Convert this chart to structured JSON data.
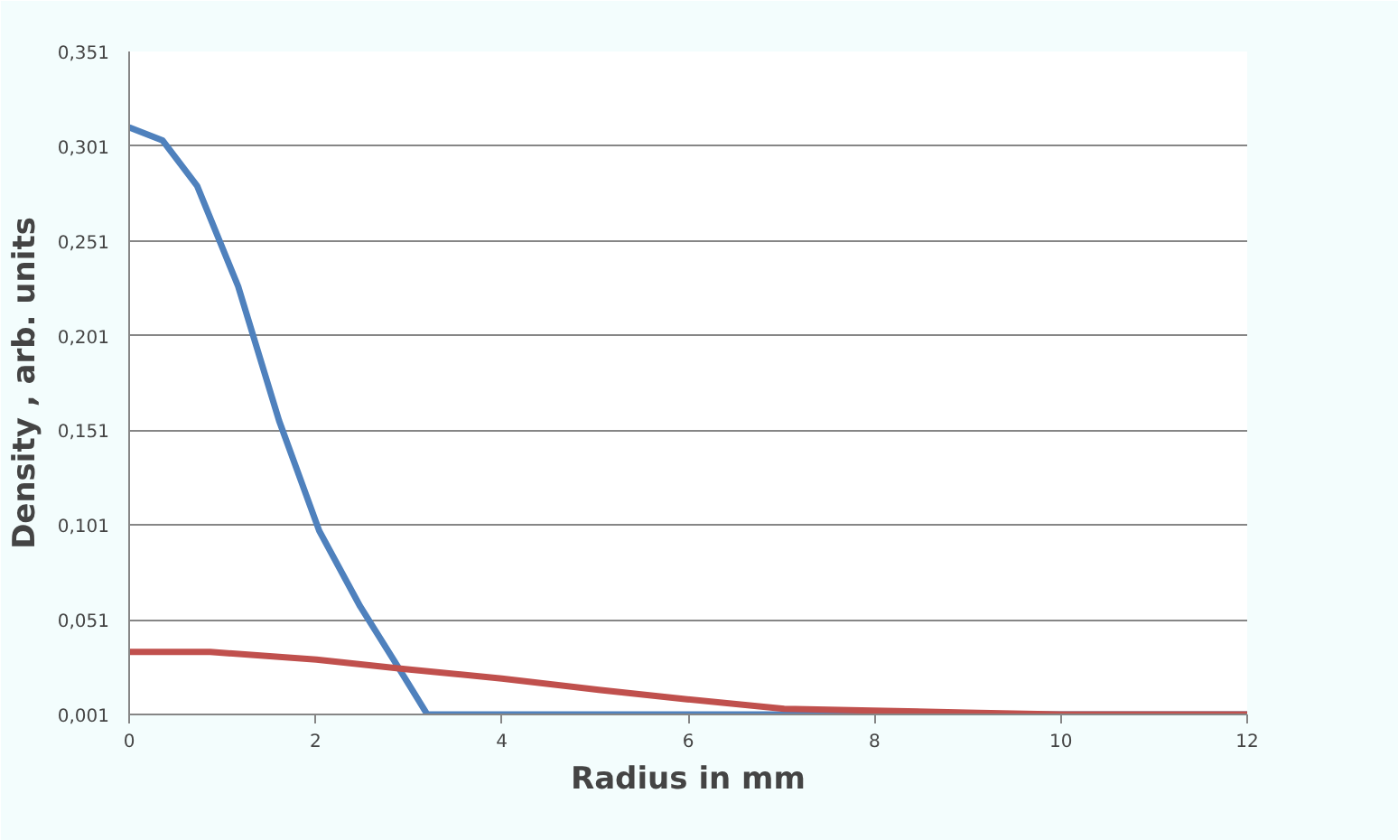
{
  "chart_data": {
    "type": "line",
    "xlabel": "Radius in mm",
    "ylabel": "Density , arb. units",
    "xlim": [
      0,
      12
    ],
    "xticks": [
      0,
      2,
      4,
      6,
      8,
      10,
      12
    ],
    "ylim": [
      0.001,
      0.351
    ],
    "yticks": [
      {
        "value": 0.001,
        "label": "0,001"
      },
      {
        "value": 0.051,
        "label": "0,051"
      },
      {
        "value": 0.101,
        "label": "0,101"
      },
      {
        "value": 0.151,
        "label": "0,151"
      },
      {
        "value": 0.201,
        "label": "0,201"
      },
      {
        "value": 0.251,
        "label": "0,251"
      },
      {
        "value": 0.301,
        "label": "0,301"
      },
      {
        "value": 0.351,
        "label": "0,351"
      }
    ],
    "grid": "y",
    "marker": "none",
    "line_style": "solid",
    "series": [
      {
        "color": "#4f81bd",
        "x": [
          0,
          0.36,
          0.73,
          1.17,
          1.61,
          2.04,
          2.48,
          2.85,
          3.2,
          6,
          8,
          10,
          12
        ],
        "values": [
          0.311,
          0.304,
          0.28,
          0.227,
          0.156,
          0.098,
          0.058,
          0.029,
          0.001,
          0.001,
          0.001,
          0.001,
          0.001
        ]
      },
      {
        "color": "#c0504d",
        "x": [
          0,
          0.87,
          2.01,
          2.96,
          4.0,
          5.04,
          5.99,
          7.03,
          7.98,
          9.0,
          10.0,
          12.0
        ],
        "values": [
          0.034,
          0.034,
          0.03,
          0.025,
          0.02,
          0.014,
          0.009,
          0.004,
          0.003,
          0.002,
          0.001,
          0.001
        ]
      }
    ]
  }
}
